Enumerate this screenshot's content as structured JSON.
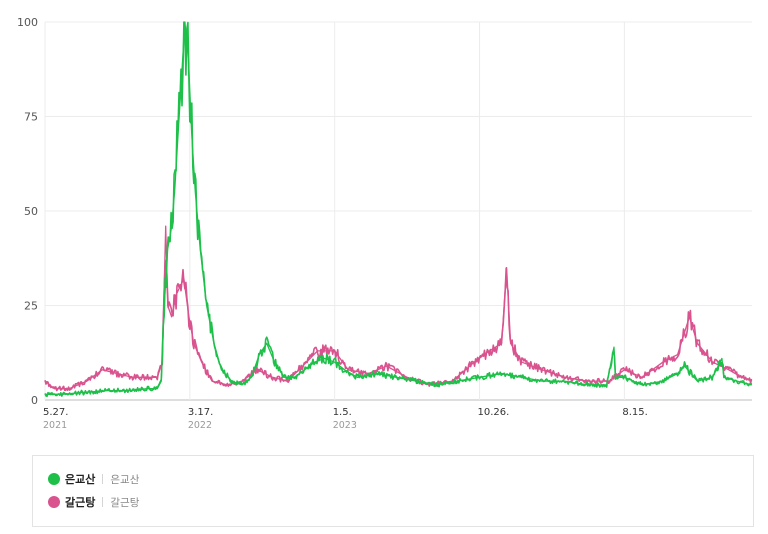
{
  "chart_data": {
    "type": "line",
    "ylim": [
      0,
      100
    ],
    "yticks": [
      "0",
      "25",
      "50",
      "75",
      "100"
    ],
    "grid": true,
    "legend_position": "bottom",
    "xtick_labels": [
      {
        "x": "2021-05-27",
        "label": "5.27.",
        "year": "2021"
      },
      {
        "x": "2022-03-17",
        "label": "3.17.",
        "year": "2022"
      },
      {
        "x": "2023-01-05",
        "label": "1.5.",
        "year": "2023"
      },
      {
        "x": "2023-10-26",
        "label": "10.26.",
        "year": ""
      },
      {
        "x": "2024-08-15",
        "label": "8.15.",
        "year": ""
      }
    ],
    "x_range": [
      "2021-05-27",
      "2025-05-01"
    ],
    "series": [
      {
        "name": "은교산",
        "terms": "은교산",
        "color": "#1ec04a",
        "points": [
          [
            "2021-05-27",
            1.5
          ],
          [
            "2021-07-01",
            1.5
          ],
          [
            "2021-08-15",
            2
          ],
          [
            "2021-10-01",
            2.5
          ],
          [
            "2021-11-15",
            2.5
          ],
          [
            "2021-12-20",
            3
          ],
          [
            "2022-01-10",
            3
          ],
          [
            "2022-01-18",
            5
          ],
          [
            "2022-01-24",
            25
          ],
          [
            "2022-01-31",
            40
          ],
          [
            "2022-02-07",
            45
          ],
          [
            "2022-02-14",
            55
          ],
          [
            "2022-02-21",
            70
          ],
          [
            "2022-02-28",
            85
          ],
          [
            "2022-03-07",
            100
          ],
          [
            "2022-03-14",
            90
          ],
          [
            "2022-03-21",
            70
          ],
          [
            "2022-03-28",
            55
          ],
          [
            "2022-04-07",
            40
          ],
          [
            "2022-04-20",
            25
          ],
          [
            "2022-05-05",
            15
          ],
          [
            "2022-05-20",
            8
          ],
          [
            "2022-06-10",
            5
          ],
          [
            "2022-07-01",
            4
          ],
          [
            "2022-07-20",
            6
          ],
          [
            "2022-08-05",
            12
          ],
          [
            "2022-08-20",
            15
          ],
          [
            "2022-09-05",
            10
          ],
          [
            "2022-09-25",
            6
          ],
          [
            "2022-10-15",
            6
          ],
          [
            "2022-11-05",
            8
          ],
          [
            "2022-11-25",
            10
          ],
          [
            "2022-12-15",
            11
          ],
          [
            "2023-01-05",
            10
          ],
          [
            "2023-01-25",
            8
          ],
          [
            "2023-02-20",
            6
          ],
          [
            "2023-04-01",
            7
          ],
          [
            "2023-05-10",
            6
          ],
          [
            "2023-06-20",
            5
          ],
          [
            "2023-08-01",
            4
          ],
          [
            "2023-09-10",
            5
          ],
          [
            "2023-10-26",
            6
          ],
          [
            "2023-12-10",
            7
          ],
          [
            "2024-01-20",
            6
          ],
          [
            "2024-03-01",
            5
          ],
          [
            "2024-04-15",
            5
          ],
          [
            "2024-06-01",
            4
          ],
          [
            "2024-07-10",
            4
          ],
          [
            "2024-07-25",
            14
          ],
          [
            "2024-07-28",
            6
          ],
          [
            "2024-08-15",
            6
          ],
          [
            "2024-09-20",
            4
          ],
          [
            "2024-11-01",
            5
          ],
          [
            "2024-12-01",
            7
          ],
          [
            "2024-12-15",
            9
          ],
          [
            "2025-01-10",
            5
          ],
          [
            "2025-02-10",
            6
          ],
          [
            "2025-03-01",
            11
          ],
          [
            "2025-03-05",
            6
          ],
          [
            "2025-04-01",
            5
          ],
          [
            "2025-05-01",
            4
          ]
        ]
      },
      {
        "name": "갈근탕",
        "terms": "갈근탕",
        "color": "#d9538f",
        "points": [
          [
            "2021-05-27",
            5
          ],
          [
            "2021-06-15",
            3
          ],
          [
            "2021-07-15",
            3
          ],
          [
            "2021-08-20",
            5
          ],
          [
            "2021-09-20",
            8
          ],
          [
            "2021-10-20",
            7
          ],
          [
            "2021-11-20",
            6
          ],
          [
            "2021-12-20",
            6
          ],
          [
            "2022-01-10",
            6
          ],
          [
            "2022-01-20",
            10
          ],
          [
            "2022-01-27",
            46
          ],
          [
            "2022-01-31",
            25
          ],
          [
            "2022-02-08",
            22
          ],
          [
            "2022-02-18",
            28
          ],
          [
            "2022-02-25",
            30
          ],
          [
            "2022-03-05",
            32
          ],
          [
            "2022-03-15",
            22
          ],
          [
            "2022-03-25",
            15
          ],
          [
            "2022-04-10",
            10
          ],
          [
            "2022-05-01",
            5
          ],
          [
            "2022-06-01",
            4
          ],
          [
            "2022-07-01",
            5
          ],
          [
            "2022-08-01",
            8
          ],
          [
            "2022-09-01",
            6
          ],
          [
            "2022-10-01",
            5
          ],
          [
            "2022-11-01",
            9
          ],
          [
            "2022-12-01",
            13
          ],
          [
            "2023-01-05",
            13
          ],
          [
            "2023-02-01",
            8
          ],
          [
            "2023-03-15",
            7
          ],
          [
            "2023-04-20",
            9
          ],
          [
            "2023-06-01",
            6
          ],
          [
            "2023-07-15",
            4
          ],
          [
            "2023-09-01",
            5
          ],
          [
            "2023-10-15",
            10
          ],
          [
            "2023-11-15",
            13
          ],
          [
            "2023-12-10",
            15
          ],
          [
            "2023-12-20",
            35
          ],
          [
            "2023-12-28",
            15
          ],
          [
            "2024-01-20",
            10
          ],
          [
            "2024-03-01",
            8
          ],
          [
            "2024-04-15",
            6
          ],
          [
            "2024-06-01",
            5
          ],
          [
            "2024-07-15",
            5
          ],
          [
            "2024-08-15",
            8
          ],
          [
            "2024-09-20",
            6
          ],
          [
            "2024-11-01",
            10
          ],
          [
            "2024-12-01",
            12
          ],
          [
            "2024-12-25",
            22
          ],
          [
            "2025-01-10",
            15
          ],
          [
            "2025-02-10",
            10
          ],
          [
            "2025-03-15",
            8
          ],
          [
            "2025-04-10",
            6
          ],
          [
            "2025-05-01",
            5
          ]
        ]
      }
    ]
  }
}
